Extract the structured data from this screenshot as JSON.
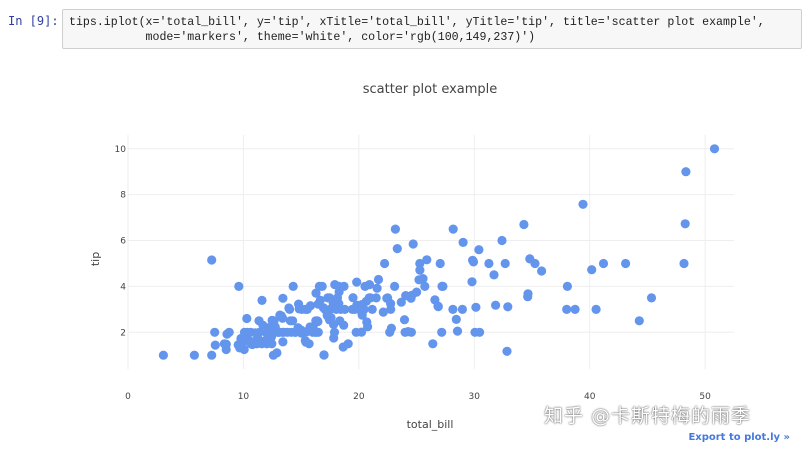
{
  "cell": {
    "prompt": "In  [9]:",
    "code_line1": "tips.iplot(x='total_bill', y='tip', xTitle='total_bill', yTitle='tip', title='scatter plot example',",
    "code_line2": "           mode='markers', theme='white', color='rgb(100,149,237)')"
  },
  "export_link": "Export to plot.ly »",
  "watermark": "知乎 @卡斯特梅的雨季",
  "colors": {
    "marker": "#6495ed",
    "grid": "#eeeeee",
    "code_bg": "#f7f7f7"
  },
  "chart_data": {
    "type": "scatter",
    "title": "scatter plot example",
    "xlabel": "total_bill",
    "ylabel": "tip",
    "xlim": [
      0,
      52.5
    ],
    "ylim": [
      0.4,
      10.6
    ],
    "x_ticks": [
      0,
      10,
      20,
      30,
      40,
      50
    ],
    "y_ticks": [
      2,
      4,
      6,
      8,
      10
    ],
    "grid": true,
    "marker_color": "rgb(100,149,237)",
    "points": [
      [
        3.07,
        1.0
      ],
      [
        5.75,
        1.0
      ],
      [
        7.25,
        1.0
      ],
      [
        7.25,
        5.15
      ],
      [
        7.51,
        2.0
      ],
      [
        7.56,
        1.44
      ],
      [
        8.35,
        1.5
      ],
      [
        8.51,
        1.25
      ],
      [
        8.52,
        1.48
      ],
      [
        8.58,
        1.92
      ],
      [
        8.77,
        2.0
      ],
      [
        9.55,
        1.45
      ],
      [
        9.6,
        4.0
      ],
      [
        9.68,
        1.32
      ],
      [
        9.78,
        1.73
      ],
      [
        9.94,
        1.56
      ],
      [
        10.07,
        1.83
      ],
      [
        10.07,
        1.25
      ],
      [
        10.09,
        2.0
      ],
      [
        10.27,
        1.71
      ],
      [
        10.29,
        2.6
      ],
      [
        10.33,
        1.67
      ],
      [
        10.34,
        2.0
      ],
      [
        10.59,
        1.61
      ],
      [
        10.63,
        2.0
      ],
      [
        10.65,
        1.5
      ],
      [
        10.77,
        1.47
      ],
      [
        11.02,
        1.98
      ],
      [
        11.17,
        1.5
      ],
      [
        11.24,
        1.76
      ],
      [
        11.35,
        2.5
      ],
      [
        11.38,
        2.0
      ],
      [
        11.59,
        1.5
      ],
      [
        11.61,
        3.39
      ],
      [
        11.69,
        2.31
      ],
      [
        11.87,
        1.63
      ],
      [
        12.02,
        1.97
      ],
      [
        12.03,
        1.5
      ],
      [
        12.16,
        2.2
      ],
      [
        12.26,
        2.0
      ],
      [
        12.43,
        1.8
      ],
      [
        12.46,
        1.5
      ],
      [
        12.48,
        2.52
      ],
      [
        12.54,
        2.5
      ],
      [
        12.6,
        1.0
      ],
      [
        12.66,
        2.5
      ],
      [
        12.69,
        2.0
      ],
      [
        12.74,
        2.01
      ],
      [
        12.76,
        2.23
      ],
      [
        12.9,
        1.1
      ],
      [
        13.0,
        2.0
      ],
      [
        13.03,
        2.0
      ],
      [
        13.13,
        2.0
      ],
      [
        13.16,
        2.75
      ],
      [
        13.28,
        2.72
      ],
      [
        13.37,
        2.0
      ],
      [
        13.39,
        2.61
      ],
      [
        13.42,
        3.48
      ],
      [
        13.42,
        1.58
      ],
      [
        13.51,
        2.0
      ],
      [
        13.81,
        2.0
      ],
      [
        13.94,
        3.06
      ],
      [
        14.0,
        3.0
      ],
      [
        14.07,
        2.5
      ],
      [
        14.15,
        2.0
      ],
      [
        14.26,
        2.5
      ],
      [
        14.31,
        4.0
      ],
      [
        14.48,
        2.0
      ],
      [
        14.52,
        2.0
      ],
      [
        14.73,
        2.2
      ],
      [
        14.78,
        3.23
      ],
      [
        14.83,
        3.02
      ],
      [
        15.01,
        2.09
      ],
      [
        15.04,
        1.96
      ],
      [
        15.06,
        3.0
      ],
      [
        15.36,
        1.64
      ],
      [
        15.38,
        3.0
      ],
      [
        15.42,
        1.57
      ],
      [
        15.48,
        2.02
      ],
      [
        15.53,
        3.0
      ],
      [
        15.69,
        1.5
      ],
      [
        15.77,
        2.23
      ],
      [
        15.81,
        3.16
      ],
      [
        15.98,
        2.03
      ],
      [
        16.0,
        2.0
      ],
      [
        16.04,
        2.24
      ],
      [
        16.21,
        2.0
      ],
      [
        16.27,
        2.5
      ],
      [
        16.29,
        3.71
      ],
      [
        16.31,
        2.0
      ],
      [
        16.4,
        2.5
      ],
      [
        16.45,
        2.47
      ],
      [
        16.47,
        3.23
      ],
      [
        16.49,
        2.0
      ],
      [
        16.58,
        4.0
      ],
      [
        16.66,
        3.4
      ],
      [
        16.82,
        4.0
      ],
      [
        16.93,
        3.07
      ],
      [
        16.97,
        1.01
      ],
      [
        16.99,
        1.01
      ],
      [
        17.07,
        3.0
      ],
      [
        17.26,
        2.74
      ],
      [
        17.29,
        2.71
      ],
      [
        17.31,
        3.5
      ],
      [
        17.46,
        2.54
      ],
      [
        17.47,
        3.5
      ],
      [
        17.51,
        3.0
      ],
      [
        17.59,
        2.64
      ],
      [
        17.78,
        3.27
      ],
      [
        17.81,
        2.34
      ],
      [
        17.82,
        1.75
      ],
      [
        17.89,
        2.0
      ],
      [
        17.92,
        4.08
      ],
      [
        18.04,
        3.0
      ],
      [
        18.15,
        3.5
      ],
      [
        18.24,
        3.25
      ],
      [
        18.26,
        3.25
      ],
      [
        18.28,
        4.0
      ],
      [
        18.29,
        3.76
      ],
      [
        18.35,
        2.5
      ],
      [
        18.43,
        3.0
      ],
      [
        18.64,
        1.36
      ],
      [
        18.69,
        2.31
      ],
      [
        18.71,
        4.0
      ],
      [
        18.78,
        3.0
      ],
      [
        19.08,
        1.5
      ],
      [
        19.44,
        3.0
      ],
      [
        19.49,
        3.51
      ],
      [
        19.65,
        3.0
      ],
      [
        19.77,
        2.0
      ],
      [
        19.81,
        4.19
      ],
      [
        19.82,
        3.18
      ],
      [
        20.08,
        3.15
      ],
      [
        20.23,
        2.01
      ],
      [
        20.27,
        2.83
      ],
      [
        20.29,
        2.75
      ],
      [
        20.29,
        3.21
      ],
      [
        20.45,
        3.0
      ],
      [
        20.53,
        4.0
      ],
      [
        20.65,
        3.35
      ],
      [
        20.69,
        2.45
      ],
      [
        20.76,
        2.24
      ],
      [
        20.9,
        3.5
      ],
      [
        20.92,
        4.08
      ],
      [
        21.01,
        3.5
      ],
      [
        21.16,
        3.0
      ],
      [
        21.5,
        3.5
      ],
      [
        21.58,
        3.92
      ],
      [
        21.7,
        4.3
      ],
      [
        22.12,
        2.88
      ],
      [
        22.23,
        5.0
      ],
      [
        22.42,
        3.48
      ],
      [
        22.49,
        3.5
      ],
      [
        22.67,
        2.0
      ],
      [
        22.75,
        3.25
      ],
      [
        22.76,
        3.0
      ],
      [
        22.82,
        2.18
      ],
      [
        23.1,
        4.0
      ],
      [
        23.17,
        6.5
      ],
      [
        23.33,
        5.65
      ],
      [
        23.68,
        3.31
      ],
      [
        23.95,
        2.55
      ],
      [
        24.01,
        2.0
      ],
      [
        24.06,
        3.6
      ],
      [
        24.27,
        2.03
      ],
      [
        24.52,
        3.48
      ],
      [
        24.55,
        2.0
      ],
      [
        24.59,
        3.61
      ],
      [
        24.71,
        5.85
      ],
      [
        25.0,
        3.75
      ],
      [
        25.21,
        4.29
      ],
      [
        25.28,
        5.0
      ],
      [
        25.29,
        4.71
      ],
      [
        25.56,
        4.34
      ],
      [
        25.71,
        4.0
      ],
      [
        25.89,
        5.16
      ],
      [
        26.41,
        1.5
      ],
      [
        26.59,
        3.41
      ],
      [
        26.86,
        3.14
      ],
      [
        26.88,
        3.12
      ],
      [
        27.05,
        5.0
      ],
      [
        27.18,
        2.0
      ],
      [
        27.2,
        4.0
      ],
      [
        27.28,
        4.0
      ],
      [
        28.15,
        3.0
      ],
      [
        28.17,
        6.5
      ],
      [
        28.44,
        2.56
      ],
      [
        28.55,
        2.05
      ],
      [
        28.97,
        3.0
      ],
      [
        29.03,
        5.92
      ],
      [
        29.8,
        4.2
      ],
      [
        29.85,
        5.14
      ],
      [
        29.93,
        5.07
      ],
      [
        30.06,
        2.0
      ],
      [
        30.14,
        3.09
      ],
      [
        30.4,
        5.6
      ],
      [
        30.46,
        2.0
      ],
      [
        31.27,
        5.0
      ],
      [
        31.71,
        4.5
      ],
      [
        31.85,
        3.18
      ],
      [
        32.4,
        6.0
      ],
      [
        32.68,
        5.0
      ],
      [
        32.83,
        1.17
      ],
      [
        32.9,
        3.11
      ],
      [
        34.3,
        6.7
      ],
      [
        34.63,
        3.55
      ],
      [
        34.65,
        3.68
      ],
      [
        34.81,
        5.2
      ],
      [
        35.26,
        5.0
      ],
      [
        35.83,
        4.67
      ],
      [
        38.01,
        3.0
      ],
      [
        38.07,
        4.0
      ],
      [
        38.73,
        3.0
      ],
      [
        39.42,
        7.58
      ],
      [
        40.17,
        4.73
      ],
      [
        40.55,
        3.0
      ],
      [
        41.19,
        5.0
      ],
      [
        43.11,
        5.0
      ],
      [
        44.3,
        2.5
      ],
      [
        45.35,
        3.5
      ],
      [
        48.17,
        5.0
      ],
      [
        48.27,
        6.73
      ],
      [
        48.33,
        9.0
      ],
      [
        50.81,
        10.0
      ]
    ]
  }
}
